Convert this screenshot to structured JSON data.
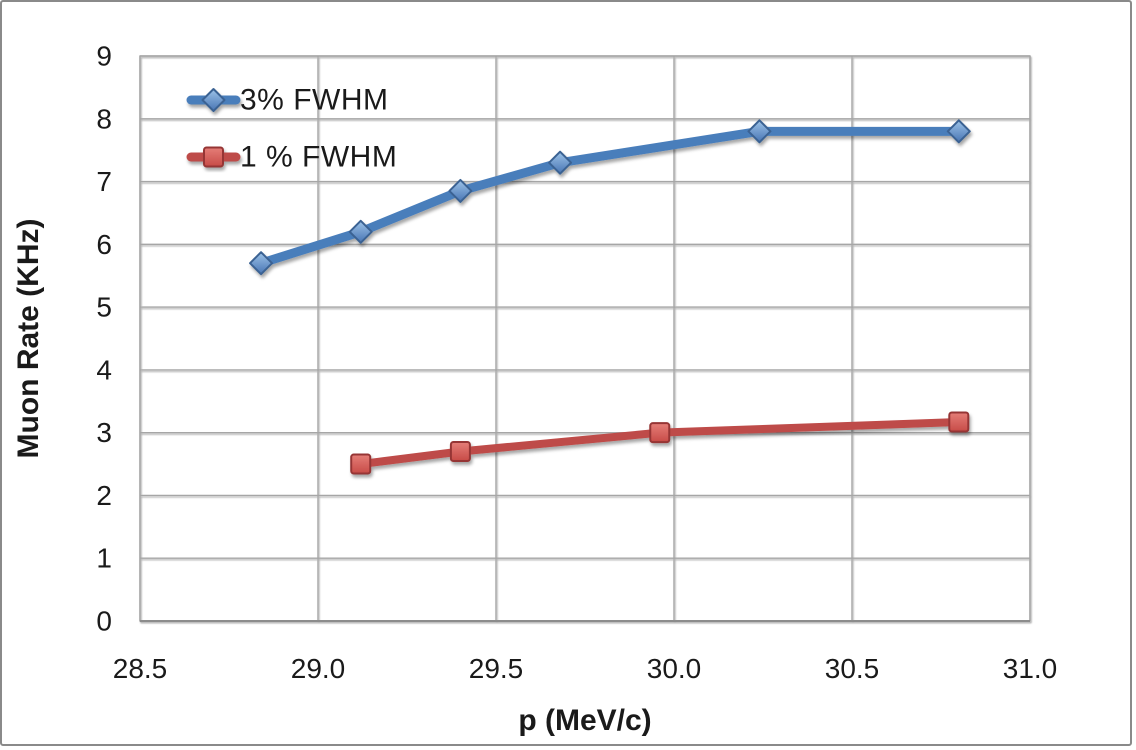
{
  "chart_data": {
    "type": "line",
    "title": "",
    "xlabel": "p (MeV/c)",
    "ylabel": "Muon Rate (KHz)",
    "xlim": [
      28.5,
      31.0
    ],
    "ylim": [
      0,
      9
    ],
    "xticks": [
      28.5,
      29.0,
      29.5,
      30.0,
      30.5,
      31.0
    ],
    "xtick_labels": [
      "28.5",
      "29.0",
      "29.5",
      "30.0",
      "30.5",
      "31.0"
    ],
    "yticks": [
      0,
      1,
      2,
      3,
      4,
      5,
      6,
      7,
      8,
      9
    ],
    "ytick_labels": [
      "0",
      "1",
      "2",
      "3",
      "4",
      "5",
      "6",
      "7",
      "8",
      "9"
    ],
    "grid": true,
    "legend_position": "top-left-inside",
    "series": [
      {
        "name": "3% FWHM",
        "marker": "diamond",
        "color": "#4A7EBB",
        "marker_fill_light": "#9DC3E8",
        "marker_fill_dark": "#4875B4",
        "marker_border": "#3A6293",
        "points": [
          [
            28.84,
            5.7
          ],
          [
            29.12,
            6.2
          ],
          [
            29.4,
            6.85
          ],
          [
            29.68,
            7.3
          ],
          [
            30.24,
            7.8
          ],
          [
            30.8,
            7.8
          ]
        ]
      },
      {
        "name": "1 % FWHM",
        "marker": "square",
        "color": "#BE4B48",
        "marker_fill_light": "#E57E78",
        "marker_fill_dark": "#C74B47",
        "marker_border": "#963634",
        "points": [
          [
            29.12,
            2.5
          ],
          [
            29.4,
            2.7
          ],
          [
            29.96,
            3.0
          ],
          [
            30.8,
            3.17
          ]
        ]
      }
    ],
    "colors": {
      "gridline": "#A6A6A6",
      "axis_line": "#8C8C8C",
      "text": "#1A1A1A",
      "background": "#FFFFFF",
      "frame_border": "#8A8A8A"
    }
  }
}
